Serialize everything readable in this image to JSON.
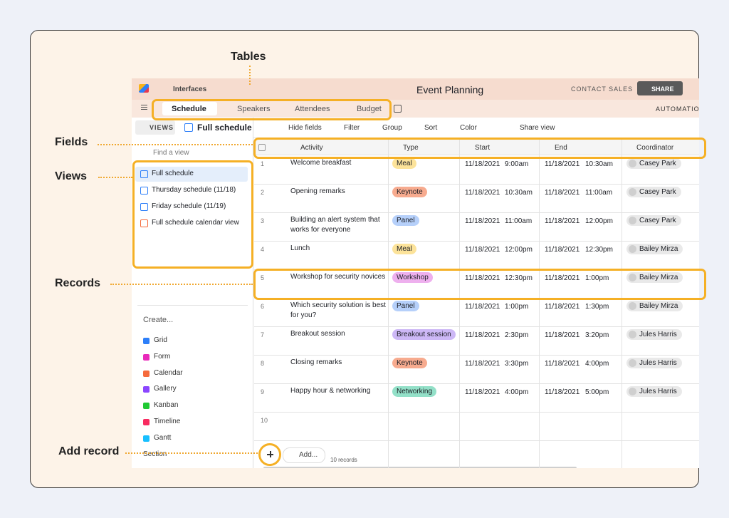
{
  "annotations": {
    "tables": "Tables",
    "fields": "Fields",
    "views": "Views",
    "records": "Records",
    "add_record": "Add record"
  },
  "top_bar": {
    "interfaces": "Interfaces",
    "base_name": "Event Planning",
    "contact_sales": "CONTACT SALES",
    "share": "SHARE",
    "automations": "AUTOMATION"
  },
  "tabs": [
    "Schedule",
    "Speakers",
    "Attendees",
    "Budget"
  ],
  "toolbar": {
    "views": "VIEWS",
    "current_view": "Full schedule",
    "buttons": [
      "Hide fields",
      "Filter",
      "Group",
      "Sort",
      "Color",
      "Share view"
    ]
  },
  "sidebar": {
    "search": "Find a view",
    "views": [
      "Full schedule",
      "Thursday schedule (11/18)",
      "Friday schedule (11/19)",
      "Full schedule calendar view"
    ],
    "create": "Create...",
    "create_items": [
      "Grid",
      "Form",
      "Calendar",
      "Gallery",
      "Kanban",
      "Timeline",
      "Gantt",
      "Section"
    ]
  },
  "grid": {
    "columns": [
      "Activity",
      "Type",
      "Start",
      "End",
      "Coordinator"
    ],
    "rows": [
      {
        "num": 1,
        "activity": "Welcome breakfast",
        "type": "Meal",
        "type_color": "#fce39a",
        "start_date": "11/18/2021",
        "start_time": "9:00am",
        "end_date": "11/18/2021",
        "end_time": "10:30am",
        "coordinator": "Casey Park"
      },
      {
        "num": 2,
        "activity": "Opening remarks",
        "type": "Keynote",
        "type_color": "#f7ab8f",
        "start_date": "11/18/2021",
        "start_time": "10:30am",
        "end_date": "11/18/2021",
        "end_time": "11:00am",
        "coordinator": "Casey Park"
      },
      {
        "num": 3,
        "activity": "Building an alert system that works for everyone",
        "type": "Panel",
        "type_color": "#b6d0fa",
        "start_date": "11/18/2021",
        "start_time": "11:00am",
        "end_date": "11/18/2021",
        "end_time": "12:00pm",
        "coordinator": "Casey Park"
      },
      {
        "num": 4,
        "activity": "Lunch",
        "type": "Meal",
        "type_color": "#fce39a",
        "start_date": "11/18/2021",
        "start_time": "12:00pm",
        "end_date": "11/18/2021",
        "end_time": "12:30pm",
        "coordinator": "Bailey Mirza"
      },
      {
        "num": 5,
        "activity": "Workshop for security novices",
        "type": "Workshop",
        "type_color": "#eeb0ee",
        "start_date": "11/18/2021",
        "start_time": "12:30pm",
        "end_date": "11/18/2021",
        "end_time": "1:00pm",
        "coordinator": "Bailey Mirza"
      },
      {
        "num": 6,
        "activity": "Which security solution is best for you?",
        "type": "Panel",
        "type_color": "#b6d0fa",
        "start_date": "11/18/2021",
        "start_time": "1:00pm",
        "end_date": "11/18/2021",
        "end_time": "1:30pm",
        "coordinator": "Bailey Mirza"
      },
      {
        "num": 7,
        "activity": "Breakout session",
        "type": "Breakout session",
        "type_color": "#cdb8f6",
        "start_date": "11/18/2021",
        "start_time": "2:30pm",
        "end_date": "11/18/2021",
        "end_time": "3:20pm",
        "coordinator": "Jules Harris"
      },
      {
        "num": 8,
        "activity": "Closing remarks",
        "type": "Keynote",
        "type_color": "#f7ab8f",
        "start_date": "11/18/2021",
        "start_time": "3:30pm",
        "end_date": "11/18/2021",
        "end_time": "4:00pm",
        "coordinator": "Jules Harris"
      },
      {
        "num": 9,
        "activity": "Happy hour & networking",
        "type": "Networking",
        "type_color": "#93e0c8",
        "start_date": "11/18/2021",
        "start_time": "4:00pm",
        "end_date": "11/18/2021",
        "end_time": "5:00pm",
        "coordinator": "Jules Harris"
      },
      {
        "num": 10
      }
    ]
  },
  "footer": {
    "add": "Add...",
    "count": "10 records"
  }
}
